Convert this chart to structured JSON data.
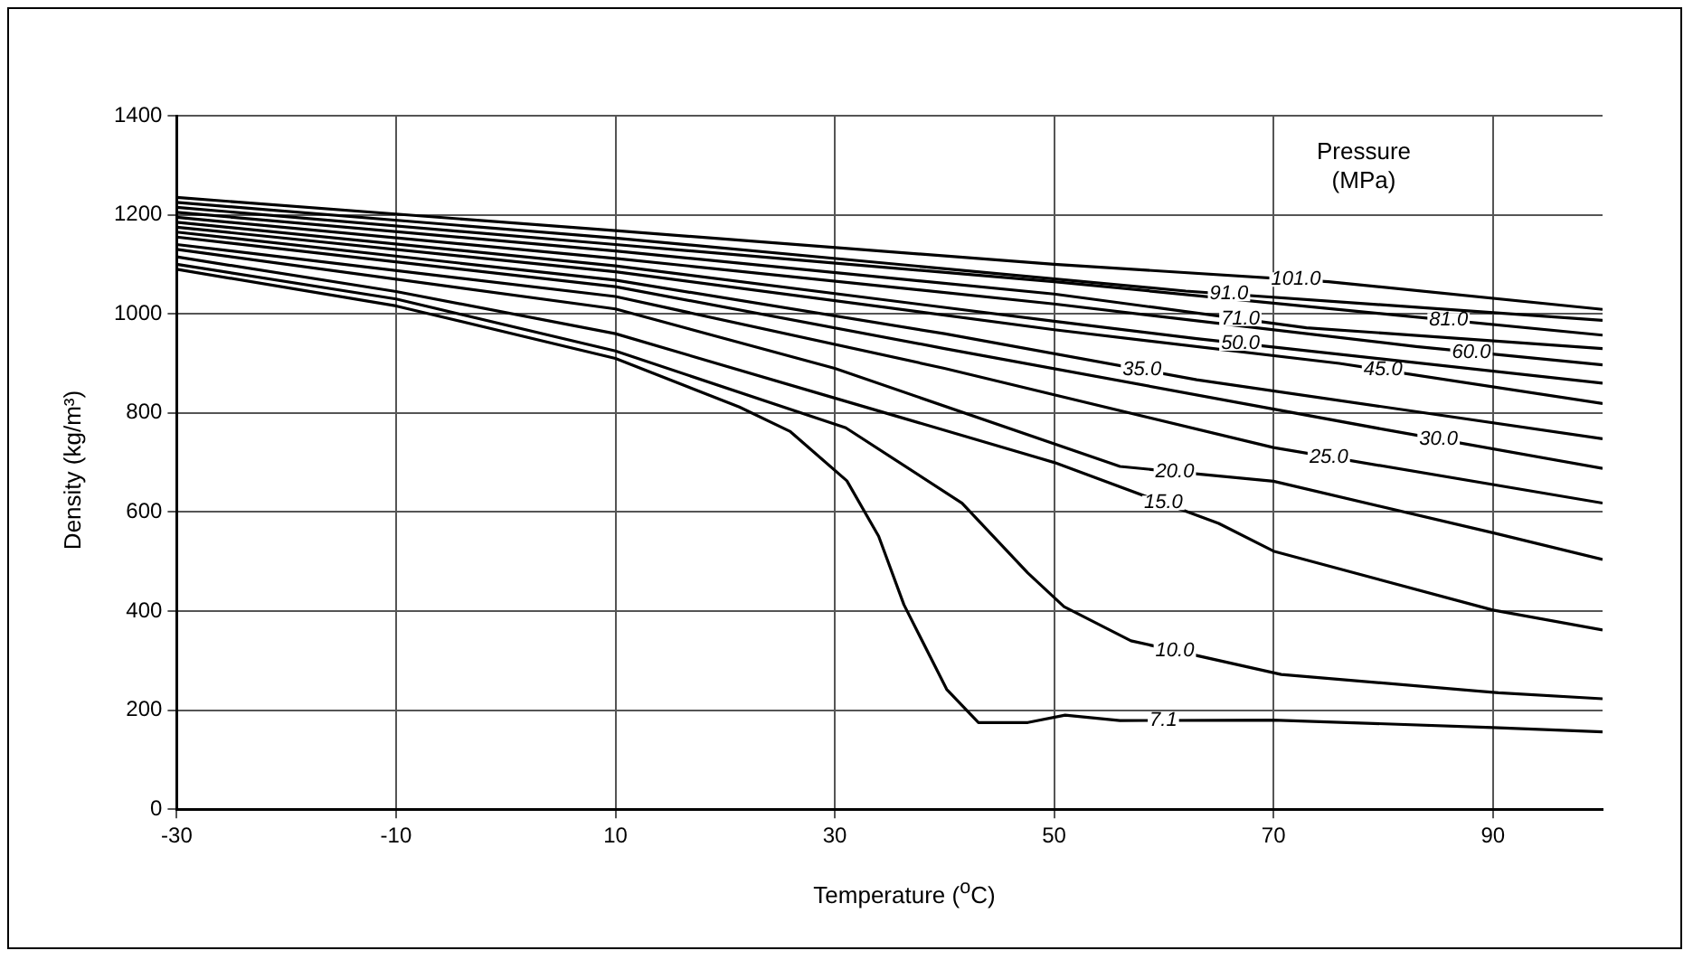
{
  "chart_data": {
    "type": "line",
    "xlabel": "Temperature ($^{o}$C)",
    "ylabel": "Density (kg/m³)",
    "legend_title": "Pressure (MPa)",
    "xlim": [
      -30,
      100
    ],
    "xticks": [
      -30,
      -10,
      10,
      30,
      50,
      70,
      90
    ],
    "ylim": [
      0,
      1400
    ],
    "yticks": [
      0,
      200,
      400,
      600,
      800,
      1000,
      1200,
      1400
    ],
    "grid": true,
    "legend": false,
    "marker": "none",
    "line_style": "solid",
    "series": [
      {
        "name": "101.0",
        "color": "#000000",
        "x": [
          -30,
          10,
          50,
          75,
          100
        ],
        "values": [
          1235,
          1168,
          1100,
          1065,
          1009
        ]
      },
      {
        "name": "91.0",
        "color": "#000000",
        "x": [
          -30,
          10,
          62,
          100
        ],
        "values": [
          1225,
          1153,
          1046,
          987
        ]
      },
      {
        "name": "81.0",
        "color": "#000000",
        "x": [
          -30,
          10,
          50,
          81,
          100
        ],
        "values": [
          1215,
          1140,
          1065,
          998,
          957
        ]
      },
      {
        "name": "71.0",
        "color": "#000000",
        "x": [
          -30,
          10,
          50,
          73,
          100
        ],
        "values": [
          1205,
          1127,
          1040,
          972,
          930
        ]
      },
      {
        "name": "60.0",
        "color": "#000000",
        "x": [
          -30,
          10,
          50,
          83,
          100
        ],
        "values": [
          1195,
          1112,
          1020,
          934,
          897
        ]
      },
      {
        "name": "50.0",
        "color": "#000000",
        "x": [
          -30,
          10,
          50,
          63,
          100
        ],
        "values": [
          1185,
          1097,
          985,
          950,
          860
        ]
      },
      {
        "name": "45.0",
        "color": "#000000",
        "x": [
          -30,
          10,
          50,
          76,
          100
        ],
        "values": [
          1175,
          1085,
          968,
          900,
          819
        ]
      },
      {
        "name": "35.0",
        "color": "#000000",
        "x": [
          -30,
          10,
          40,
          63,
          100
        ],
        "values": [
          1165,
          1068,
          960,
          867,
          748
        ]
      },
      {
        "name": "30.0",
        "color": "#000000",
        "x": [
          -30,
          10,
          40,
          80,
          100
        ],
        "values": [
          1155,
          1055,
          930,
          767,
          688
        ]
      },
      {
        "name": "25.0",
        "color": "#000000",
        "x": [
          -30,
          10,
          40,
          70,
          100
        ],
        "values": [
          1140,
          1035,
          890,
          730,
          618
        ]
      },
      {
        "name": "20.0",
        "color": "#000000",
        "x": [
          -30,
          10,
          30,
          56,
          70,
          90,
          100
        ],
        "values": [
          1130,
          1010,
          890,
          692,
          662,
          558,
          504
        ]
      },
      {
        "name": "15.0",
        "color": "#000000",
        "x": [
          -30,
          -10,
          10,
          30,
          50,
          65,
          70,
          90,
          100
        ],
        "values": [
          1115,
          1045,
          960,
          830,
          700,
          577,
          521,
          402,
          362
        ]
      },
      {
        "name": "10.0",
        "color": "#000000",
        "x": [
          -30,
          -10,
          10,
          31,
          41.6,
          47.6,
          50.9,
          57,
          70.7,
          90.5,
          100
        ],
        "values": [
          1100,
          1030,
          925,
          770,
          618,
          477,
          409,
          340,
          272,
          235,
          223
        ]
      },
      {
        "name": "7.1",
        "color": "#000000",
        "x": [
          -30,
          -10,
          10,
          21.3,
          25.9,
          31.1,
          34,
          36.3,
          40.2,
          43.1,
          47.6,
          51,
          56,
          70,
          90,
          100
        ],
        "values": [
          1090,
          1016,
          910,
          812,
          763,
          663,
          551,
          413,
          242,
          175,
          175,
          190,
          179,
          180,
          165,
          156
        ]
      }
    ]
  }
}
